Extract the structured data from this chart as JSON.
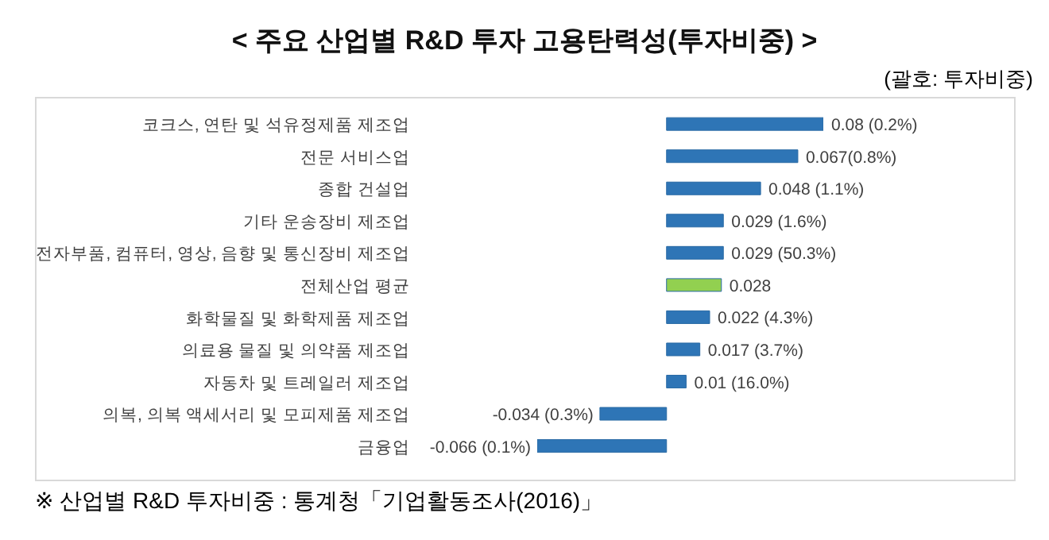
{
  "chart_data": {
    "type": "bar",
    "orientation": "horizontal",
    "title": "< 주요 산업별 R&D 투자 고용탄력성(투자비중) >",
    "subtitle": "(괄호: 투자비중)",
    "categories": [
      "코크스, 연탄 및 석유정제품 제조업",
      "전문 서비스업",
      "종합 건설업",
      "기타 운송장비 제조업",
      "전자부품, 컴퓨터, 영상, 음향 및 통신장비 제조업",
      "전체산업 평균",
      "화학물질 및 화학제품 제조업",
      "의료용 물질 및 의약품 제조업",
      "자동차 및 트레일러 제조업",
      "의복, 의복 액세서리 및 모피제품 제조업",
      "금융업"
    ],
    "values": [
      0.08,
      0.067,
      0.048,
      0.029,
      0.029,
      0.028,
      0.022,
      0.017,
      0.01,
      -0.034,
      -0.066
    ],
    "value_labels": [
      "0.08 (0.2%)",
      "0.067(0.8%)",
      "0.048 (1.1%)",
      "0.029 (1.6%)",
      "0.029 (50.3%)",
      "0.028",
      "0.022 (4.3%)",
      "0.017 (3.7%)",
      "0.01 (16.0%)",
      "-0.034 (0.3%)",
      "-0.066 (0.1%)"
    ],
    "colors": [
      "#2e75b6",
      "#2e75b6",
      "#2e75b6",
      "#2e75b6",
      "#2e75b6",
      "#92d050",
      "#2e75b6",
      "#2e75b6",
      "#2e75b6",
      "#2e75b6",
      "#2e75b6"
    ],
    "annotations": [
      "※ 산업별 R&D 투자비중 : 통계청「기업활동조사(2016)」"
    ]
  }
}
